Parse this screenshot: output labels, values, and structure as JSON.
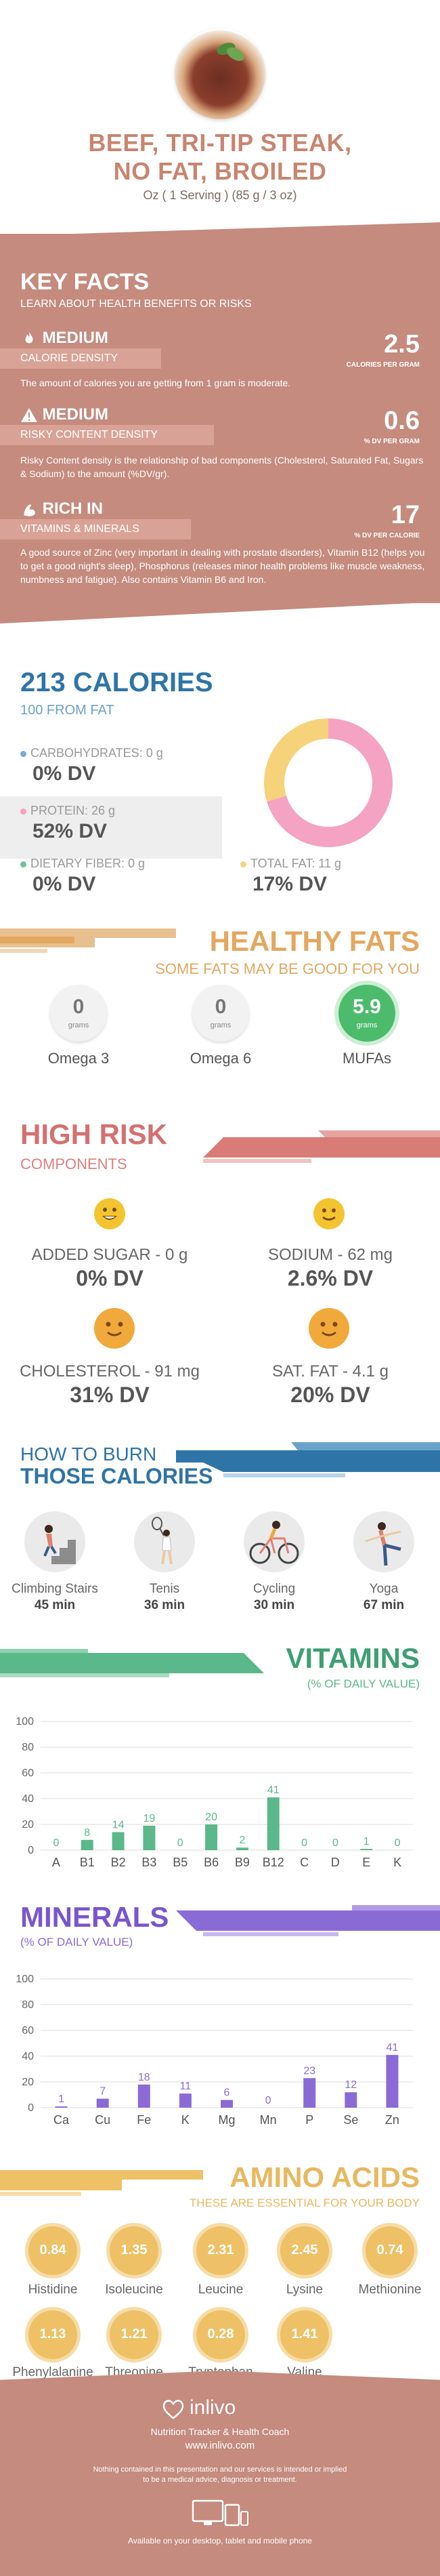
{
  "header": {
    "title_line1": "BEEF, TRI-TIP STEAK,",
    "title_line2": "NO FAT, BROILED",
    "serving": "Oz ( 1 Serving ) (85 g / 3 oz)"
  },
  "key_facts": {
    "title": "KEY FACTS",
    "subtitle": "LEARN ABOUT HEALTH BENEFITS OR RISKS",
    "items": [
      {
        "level": "MEDIUM",
        "label": "CALORIE DENSITY",
        "value": "2.5",
        "unit": "CALORIES PER GRAM",
        "desc": "The amount of calories you are getting from 1 gram is moderate."
      },
      {
        "level": "MEDIUM",
        "label": "RISKY CONTENT DENSITY",
        "value": "0.6",
        "unit": "% DV PER GRAM",
        "desc": "Risky Content density is the relationship of bad components (Cholesterol, Saturated Fat, Sugars & Sodium) to the amount (%DV/gr)."
      },
      {
        "level": "RICH  IN",
        "label": "VITAMINS & MINERALS",
        "value": "17",
        "unit": "% DV PER CALORIE",
        "desc": "A good source of Zinc (very important in dealing with prostate disorders), Vitamin B12 (helps you to get a good night's sleep), Phosphorus (releases minor health problems like muscle weakness, numbness and fatigue). Also contains Vitamin B6 and Iron."
      }
    ]
  },
  "calories": {
    "title": "213 CALORIES",
    "from_fat": "100 FROM FAT",
    "carbs_label": "CARBOHYDRATES: 0 g",
    "carbs_dv": "0% DV",
    "protein_label": "PROTEIN: 26 g",
    "protein_dv": "52% DV",
    "fiber_label": "DIETARY FIBER: 0 g",
    "fiber_dv": "0% DV",
    "fat_label": "TOTAL FAT: 11 g",
    "fat_dv": "17% DV",
    "donut": [
      {
        "name": "protein",
        "value": 26,
        "color": "#f4a3c2"
      },
      {
        "name": "fat",
        "value": 11,
        "color": "#f6d37a"
      }
    ]
  },
  "healthy_fats": {
    "title": "HEALTHY FATS",
    "subtitle": "SOME FATS MAY BE GOOD FOR YOU",
    "items": [
      {
        "value": "0",
        "unit": "grams",
        "name": "Omega 3"
      },
      {
        "value": "0",
        "unit": "grams",
        "name": "Omega 6"
      },
      {
        "value": "5.9",
        "unit": "grams",
        "name": "MUFAs"
      }
    ]
  },
  "high_risk": {
    "title": "HIGH RISK",
    "subtitle": "COMPONENTS",
    "items": [
      {
        "label": "ADDED SUGAR - 0 g",
        "dv": "0% DV"
      },
      {
        "label": "SODIUM - 62 mg",
        "dv": "2.6% DV"
      },
      {
        "label": "CHOLESTEROL - 91 mg",
        "dv": "31% DV"
      },
      {
        "label": "SAT. FAT - 4.1 g",
        "dv": "20% DV"
      }
    ]
  },
  "burn": {
    "title1": "HOW TO BURN",
    "title2": "THOSE CALORIES",
    "items": [
      {
        "name": "Climbing Stairs",
        "time": "45 min"
      },
      {
        "name": "Tenis",
        "time": "36 min"
      },
      {
        "name": "Cycling",
        "time": "30 min"
      },
      {
        "name": "Yoga",
        "time": "67 min"
      }
    ]
  },
  "vitamins_header": {
    "title": "VITAMINS",
    "subtitle": "(% OF DAILY VALUE)"
  },
  "minerals_header": {
    "title": "MINERALS",
    "subtitle": "(% OF DAILY VALUE)"
  },
  "chart_data": [
    {
      "type": "bar",
      "title": "VITAMINS",
      "subtitle": "(% OF DAILY VALUE)",
      "categories": [
        "A",
        "B1",
        "B2",
        "B3",
        "B5",
        "B6",
        "B9",
        "B12",
        "C",
        "D",
        "E",
        "K"
      ],
      "values": [
        0,
        8,
        14,
        19,
        0,
        20,
        2,
        41,
        0,
        0,
        1,
        0
      ],
      "ylim": [
        0,
        100
      ],
      "yticks": [
        0,
        20,
        40,
        60,
        80,
        100
      ],
      "color": "#5bb88b"
    },
    {
      "type": "bar",
      "title": "MINERALS",
      "subtitle": "(% OF DAILY VALUE)",
      "categories": [
        "Ca",
        "Cu",
        "Fe",
        "K",
        "Mg",
        "Mn",
        "P",
        "Se",
        "Zn"
      ],
      "values": [
        1,
        7,
        18,
        11,
        6,
        0,
        23,
        12,
        41
      ],
      "ylim": [
        0,
        100
      ],
      "yticks": [
        0,
        20,
        40,
        60,
        80,
        100
      ],
      "color": "#8a6bd6"
    }
  ],
  "amino": {
    "title": "AMINO ACIDS",
    "subtitle": "THESE ARE ESSENTIAL FOR YOUR BODY",
    "items": [
      {
        "value": "0.84",
        "name": "Histidine"
      },
      {
        "value": "1.35",
        "name": "Isoleucine"
      },
      {
        "value": "2.31",
        "name": "Leucine"
      },
      {
        "value": "2.45",
        "name": "Lysine"
      },
      {
        "value": "0.74",
        "name": "Methionine"
      },
      {
        "value": "1.13",
        "name": "Phenylalanine"
      },
      {
        "value": "1.21",
        "name": "Threonine"
      },
      {
        "value": "0.28",
        "name": "Tryptophan"
      },
      {
        "value": "1.41",
        "name": "Valine"
      }
    ]
  },
  "footer": {
    "brand": "inlivo",
    "tagline": "Nutrition Tracker & Health Coach",
    "url": "www.inlivo.com",
    "disclaimer1": "Nothing contained in this presentation and our services is intended or implied",
    "disclaimer2": "to be a medical advice, diagnosis or treatment.",
    "devices": "Available on your desktop, tablet and mobile phone"
  }
}
